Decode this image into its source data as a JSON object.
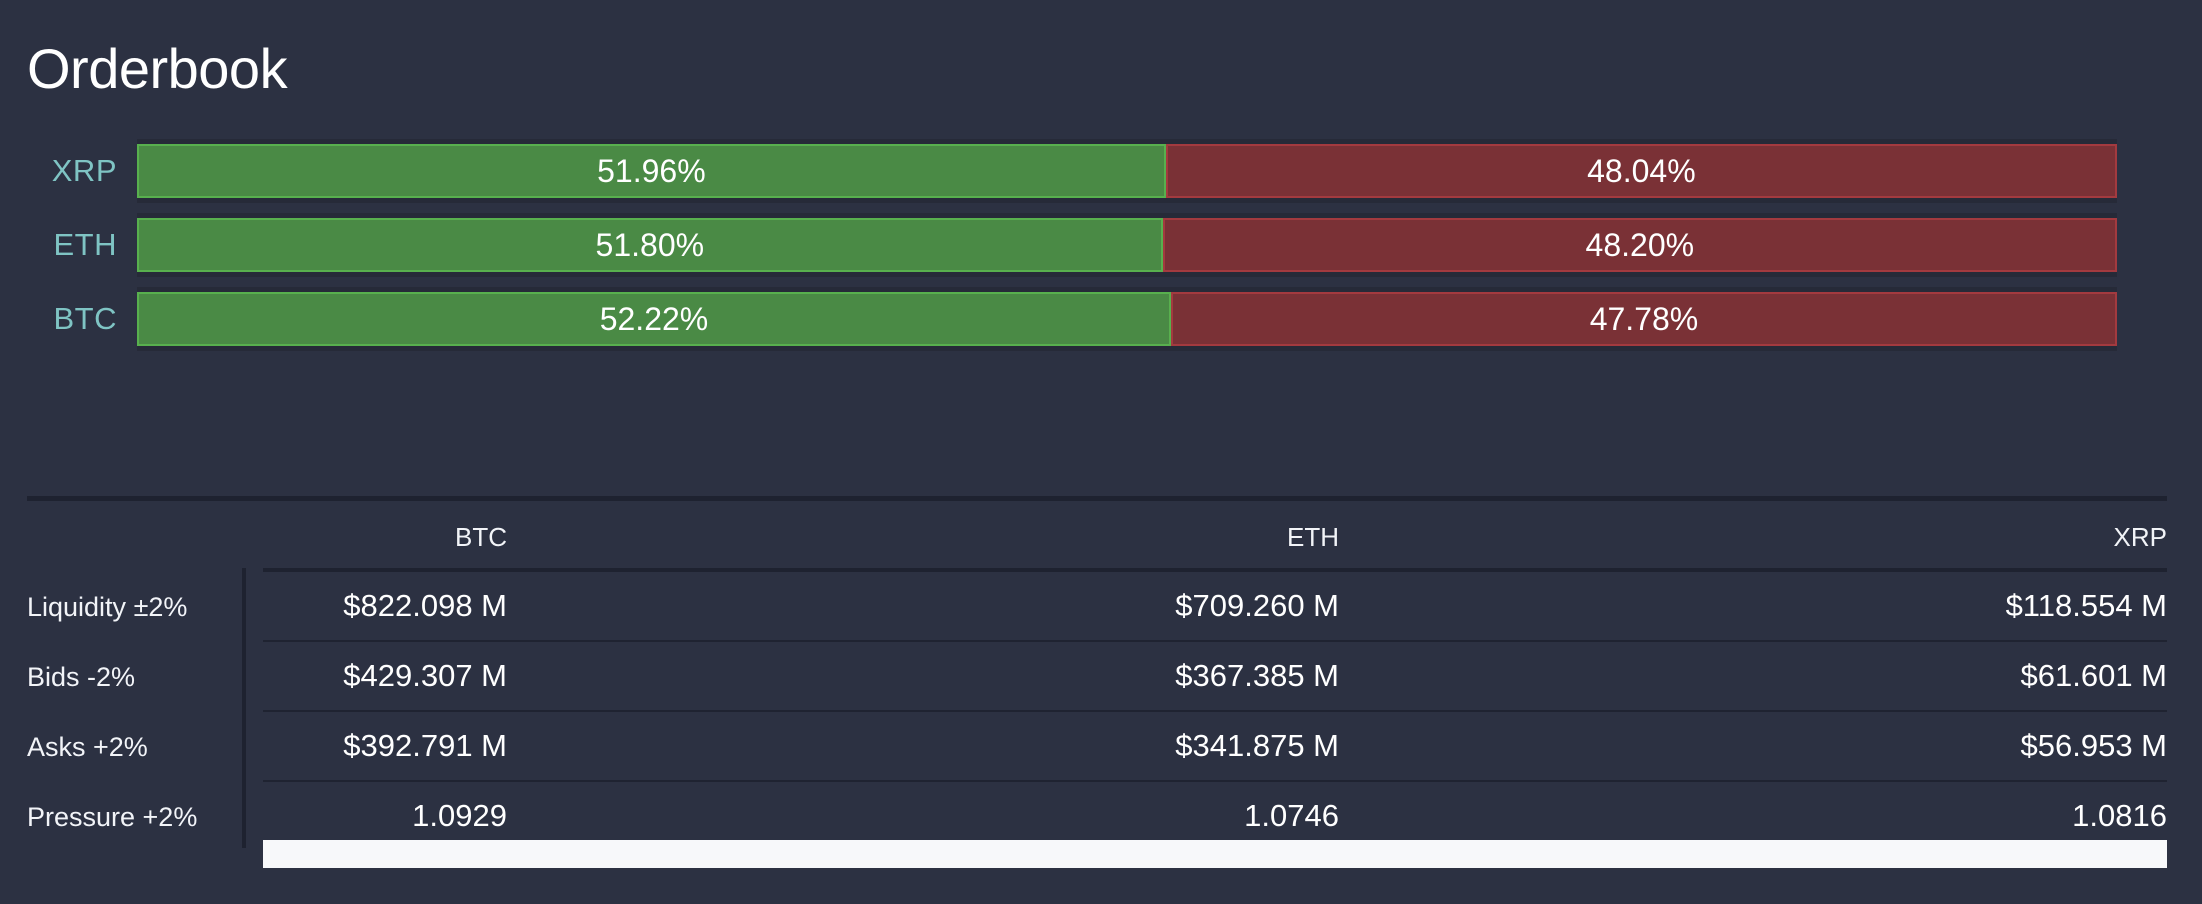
{
  "page": {
    "title": "Orderbook"
  },
  "bars": [
    {
      "symbol": "XRP",
      "bid_label": "51.96%",
      "ask_label": "48.04%",
      "bid_fraction": 0.5196
    },
    {
      "symbol": "ETH",
      "bid_label": "51.80%",
      "ask_label": "48.20%",
      "bid_fraction": 0.518
    },
    {
      "symbol": "BTC",
      "bid_label": "52.22%",
      "ask_label": "47.78%",
      "bid_fraction": 0.5222
    }
  ],
  "table": {
    "columns": [
      "BTC",
      "ETH",
      "XRP"
    ],
    "rows": [
      {
        "label": "Liquidity ±2%",
        "values": [
          "$822.098 M",
          "$709.260 M",
          "$118.554 M"
        ]
      },
      {
        "label": "Bids -2%",
        "values": [
          "$429.307 M",
          "$367.385 M",
          "$61.601 M"
        ]
      },
      {
        "label": "Asks +2%",
        "values": [
          "$392.791 M",
          "$341.875 M",
          "$56.953 M"
        ]
      },
      {
        "label": "Pressure +2%",
        "values": [
          "1.0929",
          "1.0746",
          "1.0816"
        ]
      }
    ]
  },
  "colors": {
    "background": "#2c3142",
    "bid_fill": "#4a8a45",
    "ask_fill": "#7a3136",
    "symbol_label": "#7fc4c4"
  }
}
